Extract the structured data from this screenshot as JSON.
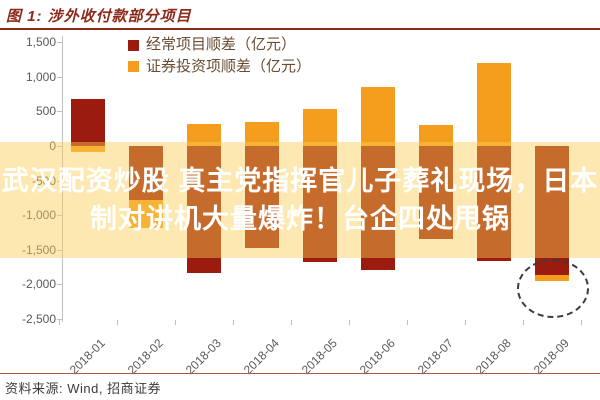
{
  "title": "图 1: 涉外收付款部分项目",
  "colors": {
    "title": "#8b2a1a",
    "current_account": "#9b1c0f",
    "securities_investment": "#f59e1e",
    "overlay_band": "rgba(248,205,80,0.45)",
    "overlay_text": "#ffffff"
  },
  "legend": [
    {
      "label": "经常项目顺差（亿元）",
      "color": "#9b1c0f"
    },
    {
      "label": "证券投资项顺差（亿元）",
      "color": "#f59e1e"
    }
  ],
  "overlay": {
    "line1": "武汉配资炒股 真主党指挥官儿子葬礼现场，日本",
    "line2": "制对讲机大量爆炸！台企四处甩锅"
  },
  "source": "资料来源: Wind, 招商证券",
  "y_tick_labels": [
    "1,500",
    "1,000",
    "500",
    "0",
    "-500",
    "-1,000",
    "-1,500",
    "-2,000",
    "-2,500"
  ],
  "chart_data": {
    "type": "bar",
    "stacked": true,
    "title": "涉外收付款部分项目",
    "xlabel": "",
    "ylabel": "亿元",
    "ylim": [
      -2500,
      1500
    ],
    "yticks": [
      1500,
      1000,
      500,
      0,
      -500,
      -1000,
      -1500,
      -2000,
      -2500
    ],
    "grid": false,
    "legend_position": "top-center",
    "categories": [
      "2018-01",
      "2018-02",
      "2018-03",
      "2018-04",
      "2018-05",
      "2018-06",
      "2018-07",
      "2018-08",
      "2018-09"
    ],
    "series": [
      {
        "name": "经常项目顺差（亿元）",
        "color": "#9b1c0f",
        "values": [
          685,
          -780,
          -1840,
          -1480,
          -1680,
          -1790,
          -1340,
          -1660,
          -1870
        ]
      },
      {
        "name": "证券投资项顺差（亿元）",
        "color": "#f59e1e",
        "values": [
          -90,
          -405,
          315,
          350,
          540,
          850,
          300,
          1200,
          -85
        ]
      }
    ],
    "annotation": {
      "type": "dashed-ellipse",
      "target": "2018-09",
      "position": "bottom-of-bar"
    }
  }
}
